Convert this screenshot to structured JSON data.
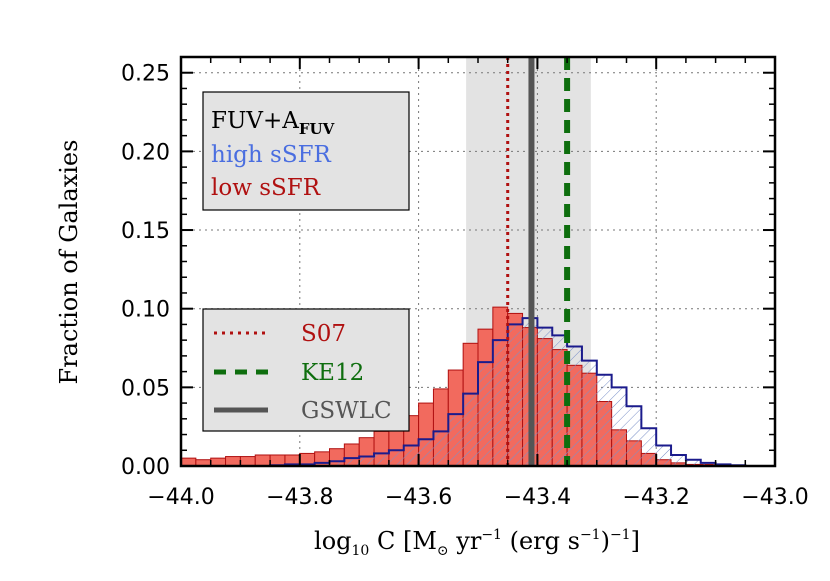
{
  "chart_data": {
    "type": "bar",
    "xlim": [
      -44.0,
      -43.0
    ],
    "ylim": [
      0.0,
      0.26
    ],
    "bin_width": 0.025,
    "bin_starts": [
      -44.0,
      -43.975,
      -43.95,
      -43.925,
      -43.9,
      -43.875,
      -43.85,
      -43.825,
      -43.8,
      -43.775,
      -43.75,
      -43.725,
      -43.7,
      -43.675,
      -43.65,
      -43.625,
      -43.6,
      -43.575,
      -43.55,
      -43.525,
      -43.5,
      -43.475,
      -43.45,
      -43.425,
      -43.4,
      -43.375,
      -43.35,
      -43.325,
      -43.3,
      -43.275,
      -43.25,
      -43.225,
      -43.2,
      -43.175,
      -43.15,
      -43.125,
      -43.1,
      -43.075,
      -43.05,
      -43.025
    ],
    "xticks": [
      -44.0,
      -43.8,
      -43.6,
      -43.4,
      -43.2,
      -43.0
    ],
    "xtick_labels": [
      "−44.0",
      "−43.8",
      "−43.6",
      "−43.4",
      "−43.2",
      "−43.0"
    ],
    "yticks": [
      0.0,
      0.05,
      0.1,
      0.15,
      0.2,
      0.25
    ],
    "ytick_labels": [
      "0.00",
      "0.05",
      "0.10",
      "0.15",
      "0.20",
      "0.25"
    ],
    "xlabel_main": "log",
    "xlabel_sub": "10",
    "xlabel_c": " C [M",
    "xlabel_sun": "⊙",
    "xlabel_yr": " yr",
    "xlabel_exp1": "−1",
    "xlabel_mid": " (erg s",
    "xlabel_exp2": "−1",
    "xlabel_close": ")",
    "xlabel_exp3": "−1",
    "xlabel_end": "]",
    "ylabel": "Fraction of Galaxies",
    "series": [
      {
        "name": "low sSFR",
        "color": "#f26a5e",
        "edge": "#b01010",
        "values": [
          0.005,
          0.004,
          0.005,
          0.006,
          0.006,
          0.007,
          0.007,
          0.007,
          0.008,
          0.009,
          0.011,
          0.014,
          0.018,
          0.022,
          0.028,
          0.032,
          0.04,
          0.049,
          0.061,
          0.078,
          0.087,
          0.101,
          0.097,
          0.088,
          0.081,
          0.074,
          0.064,
          0.059,
          0.041,
          0.023,
          0.016,
          0.008,
          0.004,
          0.002,
          0.001,
          0.001,
          0.0005,
          0.0,
          0.0,
          0.0
        ]
      },
      {
        "name": "high sSFR",
        "color": "#e4edf9",
        "edge": "#1b1b8c",
        "values": [
          0.0,
          0.0,
          0.0,
          0.0,
          0.0,
          0.0,
          0.0005,
          0.001,
          0.001,
          0.002,
          0.003,
          0.005,
          0.006,
          0.008,
          0.01,
          0.013,
          0.017,
          0.022,
          0.033,
          0.046,
          0.066,
          0.08,
          0.09,
          0.094,
          0.088,
          0.083,
          0.076,
          0.067,
          0.058,
          0.05,
          0.038,
          0.024,
          0.013,
          0.007,
          0.004,
          0.002,
          0.001,
          0.0005,
          0.0,
          0.0
        ]
      }
    ],
    "gray_band": [
      -43.52,
      -43.31
    ],
    "vlines": [
      {
        "name": "S07",
        "x": -43.45,
        "color": "#b01010",
        "style": "dotted"
      },
      {
        "name": "KE12",
        "x": -43.35,
        "color": "#0e6e0e",
        "style": "dashed"
      },
      {
        "name": "GSWLC",
        "x": -43.41,
        "color": "#555555",
        "style": "solid"
      }
    ],
    "legend_top": [
      {
        "label": "FUV+A",
        "sub": "FUV",
        "color": "#000000"
      },
      {
        "label": "high sSFR",
        "color": "#4a6ee0"
      },
      {
        "label": "low sSFR",
        "color": "#b01010"
      }
    ],
    "legend_bottom": [
      {
        "label": "S07",
        "color": "#b01010",
        "style": "dotted"
      },
      {
        "label": "KE12",
        "color": "#0e6e0e",
        "style": "dashed"
      },
      {
        "label": "GSWLC",
        "color": "#555555",
        "style": "solid"
      }
    ]
  }
}
